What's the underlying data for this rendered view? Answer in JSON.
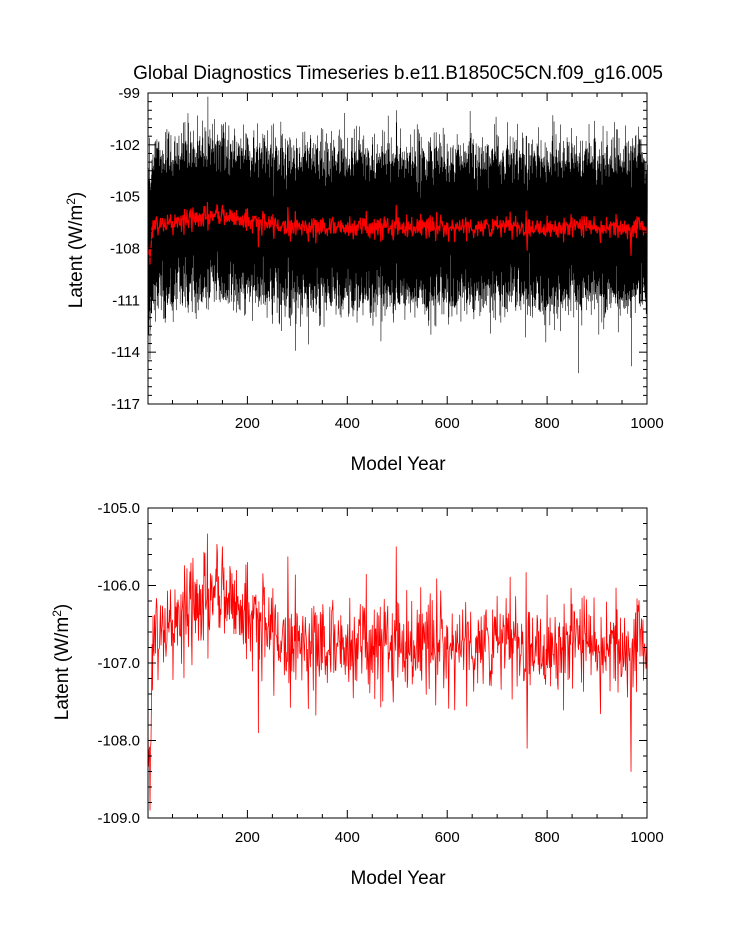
{
  "figure": {
    "title": "Global Diagnostics Timeseries b.e11.B1850C5CN.f09_g16.005"
  },
  "chart_data": [
    {
      "type": "line",
      "panel": "top",
      "xlabel": "Model Year",
      "ylabel": "Latent (W/m",
      "ylabel_sup": "2",
      "ylabel_close": ")",
      "xlim": [
        1,
        1000
      ],
      "ylim": [
        -117,
        -99
      ],
      "xticks": [
        200,
        400,
        600,
        800,
        1000
      ],
      "xtick_labels": [
        "200",
        "400",
        "600",
        "800",
        "1000"
      ],
      "yticks": [
        -99,
        -102,
        -105,
        -108,
        -111,
        -114,
        -117
      ],
      "ytick_labels": [
        "-99",
        "-102",
        "-105",
        "-108",
        "-111",
        "-114",
        "-117"
      ],
      "grid": false,
      "series": [
        {
          "kind": "monthly",
          "color": "#000000",
          "points": 12000,
          "mean_approx": -106.8,
          "range_approx": [
            -115.2,
            -100.3
          ]
        },
        {
          "kind": "annual",
          "color": "#ff0000",
          "mean_approx": -106.8,
          "range_approx": [
            -108.9,
            -105.5
          ]
        }
      ]
    },
    {
      "type": "line",
      "panel": "bottom",
      "xlabel": "Model Year",
      "ylabel": "Latent (W/m",
      "ylabel_sup": "2",
      "ylabel_close": ")",
      "xlim": [
        1,
        1000
      ],
      "ylim": [
        -109.0,
        -105.0
      ],
      "xticks": [
        200,
        400,
        600,
        800,
        1000
      ],
      "xtick_labels": [
        "200",
        "400",
        "600",
        "800",
        "1000"
      ],
      "yticks": [
        -105.0,
        -106.0,
        -107.0,
        -108.0,
        -109.0
      ],
      "ytick_labels": [
        "-105.0",
        "-106.0",
        "-107.0",
        "-108.0",
        "-109.0"
      ],
      "grid": false,
      "series": [
        {
          "kind": "annual",
          "color": "#ff0000",
          "points": 1000,
          "mean_approx": -106.8,
          "range_approx": [
            -108.9,
            -105.5
          ]
        }
      ]
    }
  ]
}
